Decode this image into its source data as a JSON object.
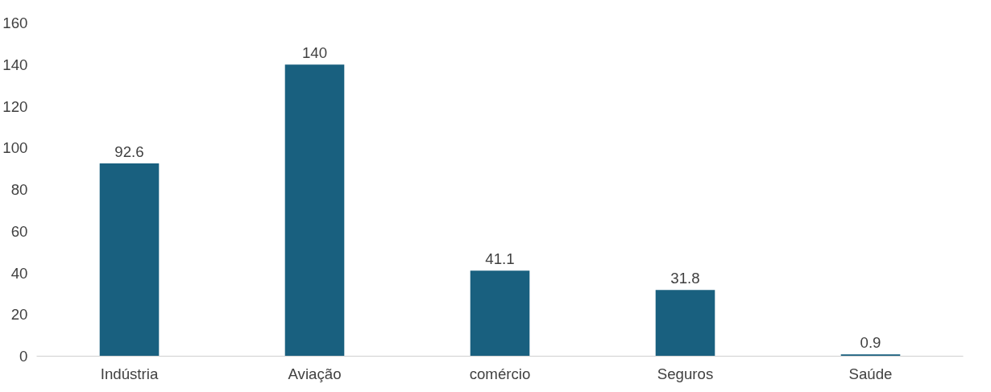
{
  "chart_data": {
    "type": "bar",
    "categories": [
      "Indústria",
      "Aviação",
      "comércio",
      "Seguros",
      "Saúde"
    ],
    "values": [
      92.6,
      140,
      41.1,
      31.8,
      0.9
    ],
    "color": "#19607f",
    "ylim": [
      0,
      160
    ],
    "yticks": [
      0,
      20,
      40,
      60,
      80,
      100,
      120,
      140,
      160
    ],
    "data_labels": true,
    "grid": false
  }
}
